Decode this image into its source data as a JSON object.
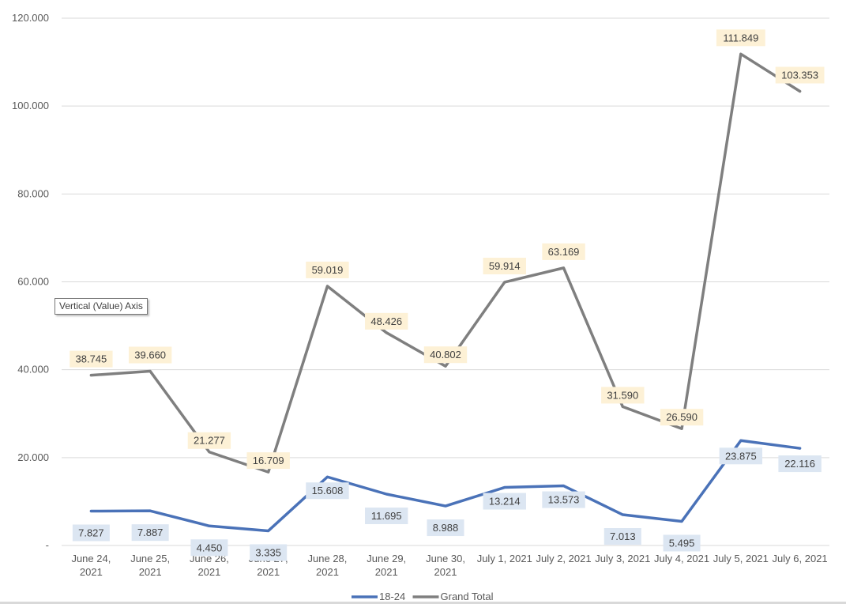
{
  "chart_data": {
    "type": "line",
    "title": "",
    "xlabel": "",
    "ylabel": "",
    "categories": [
      [
        "June 24,",
        "2021"
      ],
      [
        "June 25,",
        "2021"
      ],
      [
        "June 26,",
        "2021"
      ],
      [
        "June 27,",
        "2021"
      ],
      [
        "June 28,",
        "2021"
      ],
      [
        "June 29,",
        "2021"
      ],
      [
        "June 30,",
        "2021"
      ],
      [
        "July 1, 2021"
      ],
      [
        "July 2, 2021"
      ],
      [
        "July 3, 2021"
      ],
      [
        "July 4, 2021"
      ],
      [
        "July 5, 2021"
      ],
      [
        "July 6, 2021"
      ]
    ],
    "ylim": [
      0,
      120000
    ],
    "yticks": [
      0,
      20000,
      40000,
      60000,
      80000,
      100000,
      120000
    ],
    "ytick_labels": [
      "-",
      "20.000",
      "40.000",
      "60.000",
      "80.000",
      "100.000",
      "120.000"
    ],
    "grid": true,
    "legend_position": "bottom",
    "series": [
      {
        "name": "18-24",
        "color": "#4a72b8",
        "label_bg": "#dce6f2",
        "values": [
          7827,
          7887,
          4450,
          3335,
          15608,
          11695,
          8988,
          13214,
          13573,
          7013,
          5495,
          23875,
          22116
        ],
        "labels": [
          "7.827",
          "7.887",
          "4.450",
          "3.335",
          "15.608",
          "11.695",
          "8.988",
          "13.214",
          "13.573",
          "7.013",
          "5.495",
          "23.875",
          "22.116"
        ]
      },
      {
        "name": "Grand Total",
        "color": "#7f7f7f",
        "label_bg": "#fdf1d6",
        "values": [
          38745,
          39660,
          21277,
          16709,
          59019,
          48426,
          40802,
          59914,
          63169,
          31590,
          26590,
          111849,
          103353
        ],
        "labels": [
          "38.745",
          "39.660",
          "21.277",
          "16.709",
          "59.019",
          "48.426",
          "40.802",
          "59.914",
          "63.169",
          "31.590",
          "26.590",
          "111.849",
          "103.353"
        ]
      }
    ]
  },
  "tooltip": {
    "text": "Vertical (Value) Axis"
  }
}
